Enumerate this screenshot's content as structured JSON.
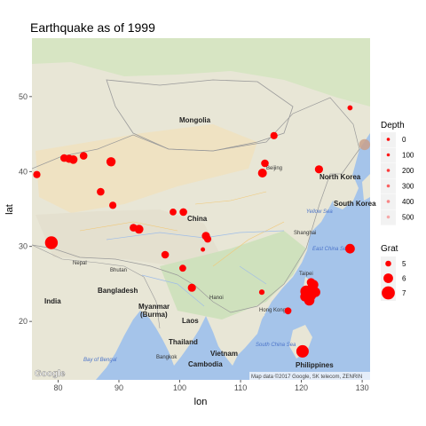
{
  "title": "Earthquake as of 1999",
  "xlabel": "lon",
  "ylabel": "lat",
  "xticks": [
    "80",
    "90",
    "100",
    "110",
    "120",
    "130"
  ],
  "yticks": [
    "20",
    "30",
    "40",
    "50"
  ],
  "map_labels": {
    "countries": [
      "Mongolia",
      "China",
      "North Korea",
      "South Korea",
      "India",
      "Nepal",
      "Bhutan",
      "Bangladesh",
      "Myanmar",
      "(Burma)",
      "Laos",
      "Thailand",
      "Vietnam",
      "Cambodia",
      "Philippines"
    ],
    "cities": [
      "Beijing",
      "Shanghai",
      "Taipei",
      "Hong Kong",
      "Bangkok",
      "Hanoi"
    ],
    "seas": [
      "Yellow Sea",
      "East China Sea",
      "South China Sea",
      "Bay of Bengal"
    ]
  },
  "attribution": "Map data ©2017 Google, SK telecom, ZENRIN",
  "google_logo": "Google",
  "legend": {
    "depth": {
      "title": "Depth",
      "labels": [
        "0",
        "100",
        "200",
        "300",
        "400",
        "500"
      ]
    },
    "grat": {
      "title": "Grat",
      "labels": [
        "5",
        "6",
        "7"
      ]
    }
  },
  "colors": {
    "point": "#ff0000",
    "panel_border": "#ffffff",
    "land": "#e8e6d6",
    "water": "#a5c4ea"
  },
  "chart_data": {
    "type": "scatter",
    "title": "Earthquake as of 1999",
    "xlabel": "lon",
    "ylabel": "lat",
    "xlim": [
      75.7,
      131.3
    ],
    "ylim": [
      12.2,
      57.8
    ],
    "x_ticks": [
      80,
      90,
      100,
      110,
      120,
      130
    ],
    "y_ticks": [
      20,
      30,
      40,
      50
    ],
    "color_legend": {
      "name": "Depth",
      "breaks": [
        0,
        100,
        200,
        300,
        400,
        500
      ]
    },
    "size_legend": {
      "name": "Grat",
      "breaks": [
        5,
        6,
        7
      ]
    },
    "points": [
      {
        "lon": 76.5,
        "lat": 39.6,
        "grat": 5.4,
        "depth": 20
      },
      {
        "lon": 81.0,
        "lat": 41.8,
        "grat": 5.5,
        "depth": 15
      },
      {
        "lon": 81.8,
        "lat": 41.7,
        "grat": 5.6,
        "depth": 20
      },
      {
        "lon": 82.5,
        "lat": 41.6,
        "grat": 5.7,
        "depth": 15
      },
      {
        "lon": 84.2,
        "lat": 42.1,
        "grat": 5.5,
        "depth": 20
      },
      {
        "lon": 88.7,
        "lat": 41.3,
        "grat": 5.9,
        "depth": 25
      },
      {
        "lon": 87.0,
        "lat": 37.3,
        "grat": 5.5,
        "depth": 15
      },
      {
        "lon": 89.0,
        "lat": 35.5,
        "grat": 5.4,
        "depth": 20
      },
      {
        "lon": 92.4,
        "lat": 32.5,
        "grat": 5.5,
        "depth": 30
      },
      {
        "lon": 93.3,
        "lat": 32.3,
        "grat": 5.8,
        "depth": 25
      },
      {
        "lon": 98.9,
        "lat": 34.6,
        "grat": 5.3,
        "depth": 10
      },
      {
        "lon": 100.6,
        "lat": 34.6,
        "grat": 5.5,
        "depth": 20
      },
      {
        "lon": 104.3,
        "lat": 31.4,
        "grat": 5.6,
        "depth": 15
      },
      {
        "lon": 104.6,
        "lat": 31.0,
        "grat": 5.4,
        "depth": 20
      },
      {
        "lon": 97.6,
        "lat": 28.9,
        "grat": 5.5,
        "depth": 10
      },
      {
        "lon": 100.5,
        "lat": 27.1,
        "grat": 5.3,
        "depth": 15
      },
      {
        "lon": 102.0,
        "lat": 24.5,
        "grat": 5.6,
        "depth": 10
      },
      {
        "lon": 103.8,
        "lat": 29.6,
        "grat": 4.6,
        "depth": 10
      },
      {
        "lon": 78.9,
        "lat": 30.5,
        "grat": 6.9,
        "depth": 15
      },
      {
        "lon": 115.5,
        "lat": 44.8,
        "grat": 5.4,
        "depth": 20
      },
      {
        "lon": 113.6,
        "lat": 39.8,
        "grat": 5.8,
        "depth": 15
      },
      {
        "lon": 114.0,
        "lat": 41.1,
        "grat": 5.5,
        "depth": 10
      },
      {
        "lon": 122.9,
        "lat": 40.3,
        "grat": 5.6,
        "depth": 20
      },
      {
        "lon": 128.0,
        "lat": 48.5,
        "grat": 4.8,
        "depth": 40
      },
      {
        "lon": 130.4,
        "lat": 43.6,
        "grat": 6.4,
        "depth": 560
      },
      {
        "lon": 113.5,
        "lat": 23.9,
        "grat": 4.9,
        "depth": 15
      },
      {
        "lon": 117.8,
        "lat": 21.4,
        "grat": 5.3,
        "depth": 20
      },
      {
        "lon": 120.8,
        "lat": 24.0,
        "grat": 6.6,
        "depth": 25
      },
      {
        "lon": 121.0,
        "lat": 23.6,
        "grat": 6.4,
        "depth": 20
      },
      {
        "lon": 121.5,
        "lat": 23.5,
        "grat": 6.5,
        "depth": 30
      },
      {
        "lon": 121.7,
        "lat": 24.3,
        "grat": 6.3,
        "depth": 15
      },
      {
        "lon": 121.3,
        "lat": 22.8,
        "grat": 6.2,
        "depth": 20
      },
      {
        "lon": 122.0,
        "lat": 24.9,
        "grat": 6.0,
        "depth": 25
      },
      {
        "lon": 121.6,
        "lat": 25.2,
        "grat": 5.7,
        "depth": 20
      },
      {
        "lon": 122.3,
        "lat": 23.9,
        "grat": 6.1,
        "depth": 15
      },
      {
        "lon": 120.6,
        "lat": 23.3,
        "grat": 6.0,
        "depth": 10
      },
      {
        "lon": 128.0,
        "lat": 29.7,
        "grat": 6.0,
        "depth": 20
      },
      {
        "lon": 120.2,
        "lat": 16.0,
        "grat": 6.8,
        "depth": 30
      }
    ]
  }
}
